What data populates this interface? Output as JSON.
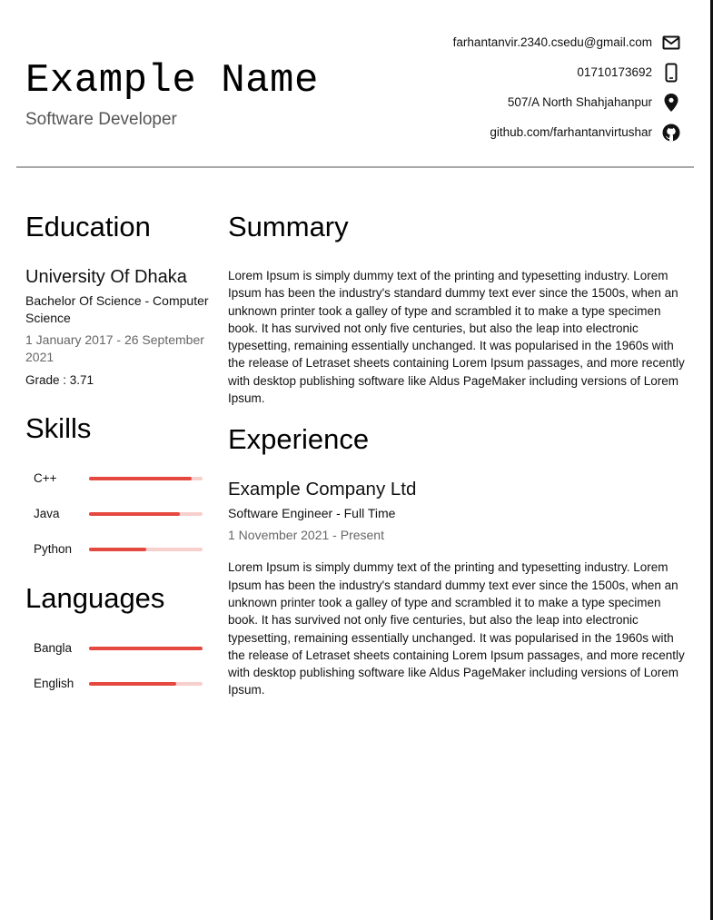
{
  "header": {
    "name": "Example Name",
    "role": "Software Developer",
    "contacts": [
      {
        "text": "farhantanvir.2340.csedu@gmail.com",
        "icon": "mail-icon"
      },
      {
        "text": "01710173692",
        "icon": "phone-icon"
      },
      {
        "text": "507/A North Shahjahanpur",
        "icon": "location-pin-icon"
      },
      {
        "text": "github.com/farhantanvirtushar",
        "icon": "github-icon"
      }
    ]
  },
  "education": {
    "title": "Education",
    "school": "University Of Dhaka",
    "degree": "Bachelor Of Science - Computer Science",
    "dates": "1 January 2017 - 26 September 2021",
    "grade": "Grade : 3.71"
  },
  "skills": {
    "title": "Skills",
    "items": [
      {
        "label": "C++",
        "level": 0.9
      },
      {
        "label": "Java",
        "level": 0.8
      },
      {
        "label": "Python",
        "level": 0.5
      }
    ]
  },
  "languages": {
    "title": "Languages",
    "items": [
      {
        "label": "Bangla",
        "level": 1.0
      },
      {
        "label": "English",
        "level": 0.77
      }
    ]
  },
  "summary": {
    "title": "Summary",
    "text": "Lorem Ipsum is simply dummy text of the printing and typesetting industry. Lorem Ipsum has been the industry's standard dummy text ever since the 1500s, when an unknown printer took a galley of type and scrambled it to make a type specimen book. It has survived not only five centuries, but also the leap into electronic typesetting, remaining essentially unchanged. It was popularised in the 1960s with the release of Letraset sheets containing Lorem Ipsum passages, and more recently with desktop publishing software like Aldus PageMaker including versions of Lorem Ipsum."
  },
  "experience": {
    "title": "Experience",
    "company": "Example Company Ltd",
    "position": "Software Engineer - Full Time",
    "dates": "1 November 2021 - Present",
    "description": "Lorem Ipsum is simply dummy text of the printing and typesetting industry. Lorem Ipsum has been the industry's standard dummy text ever since the 1500s, when an unknown printer took a galley of type and scrambled it to make a type specimen book. It has survived not only five centuries, but also the leap into electronic typesetting, remaining essentially unchanged. It was popularised in the 1960s with the release of Letraset sheets containing Lorem Ipsum passages, and more recently with desktop publishing software like Aldus PageMaker including versions of Lorem Ipsum."
  },
  "colors": {
    "bar_fill": "#e5483f",
    "bar_track": "#f7cfcc",
    "rule": "#a9a9a9"
  }
}
